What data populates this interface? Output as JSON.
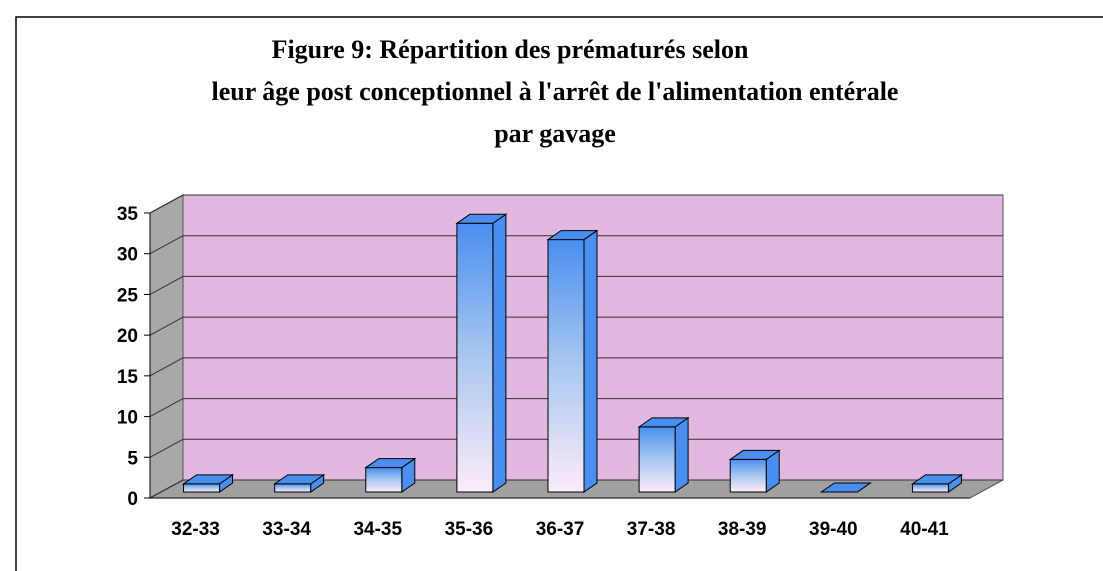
{
  "chart_data": {
    "type": "bar3d",
    "title": [
      "Figure 9: Répartition des prématurés selon",
      "leur âge post conceptionnel à l'arrêt de l'alimentation entérale",
      "par gavage"
    ],
    "categories": [
      "32-33",
      "33-34",
      "34-35",
      "35-36",
      "36-37",
      "37-38",
      "38-39",
      "39-40",
      "40-41"
    ],
    "values": [
      1,
      1,
      3,
      33,
      31,
      8,
      4,
      0,
      1
    ],
    "ylim": [
      0,
      35
    ],
    "yticks": [
      0,
      5,
      10,
      15,
      20,
      25,
      30,
      35
    ],
    "grid": true,
    "color": "#4a8ff0"
  }
}
